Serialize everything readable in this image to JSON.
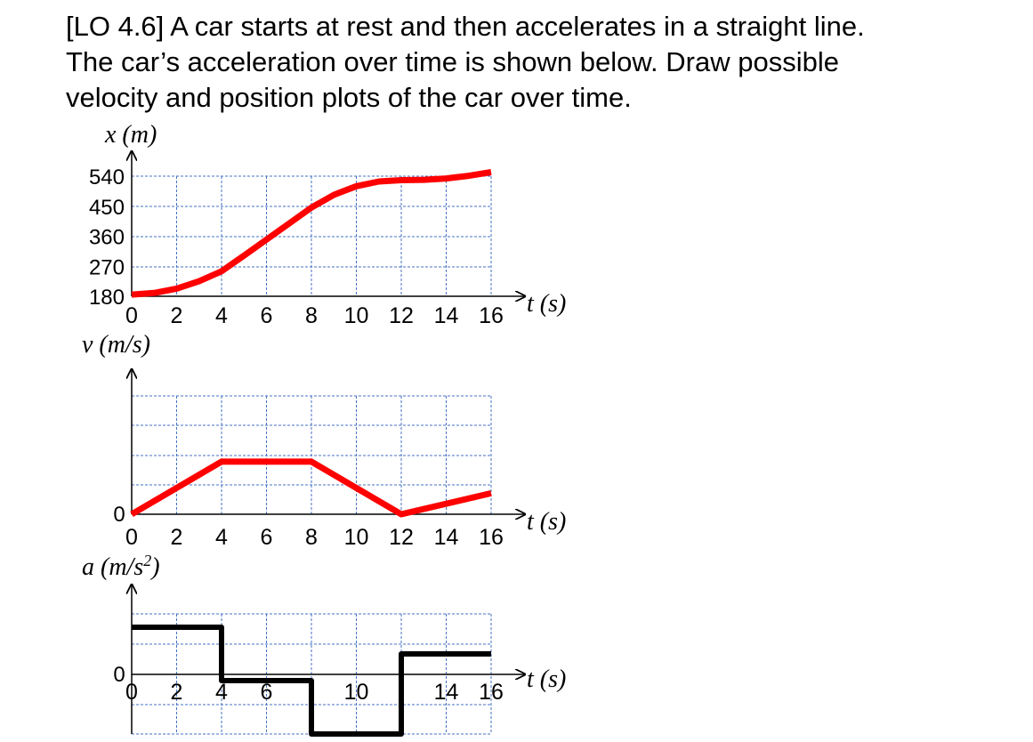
{
  "question": {
    "lines": [
      "[LO 4.6] A car starts at rest and then accelerates in a straight line.",
      "The car’s acceleration over time is shown below. Draw possible",
      "velocity and position plots of the car over time."
    ]
  },
  "colors": {
    "curve_answer": "#ff0000",
    "curve_given": "#000000",
    "grid": "#4472c4",
    "axis": "#000000"
  },
  "chart_data": [
    {
      "type": "line",
      "id": "position",
      "ylabel": "x (m)",
      "xlabel": "t (s)",
      "xlim": [
        0,
        16
      ],
      "ylim": [
        180,
        540
      ],
      "x_ticks": [
        "0",
        "2",
        "4",
        "6",
        "8",
        "10",
        "12",
        "14",
        "16"
      ],
      "y_ticks": [
        "180",
        "270",
        "360",
        "450",
        "540"
      ],
      "grid": true,
      "series": [
        {
          "x": [
            0,
            1,
            2,
            3,
            4,
            5,
            6,
            7,
            8,
            9,
            10,
            11,
            12,
            13,
            14,
            15,
            16
          ],
          "y": [
            185,
            190,
            203,
            225,
            255,
            302,
            350,
            398,
            446,
            484,
            510,
            524,
            528,
            529,
            533,
            541,
            552
          ]
        }
      ]
    },
    {
      "type": "line",
      "id": "velocity",
      "ylabel": "v (m/s)",
      "xlabel": "t (s)",
      "xlim": [
        0,
        16
      ],
      "ylim": [
        0,
        4.5
      ],
      "x_ticks": [
        "0",
        "2",
        "4",
        "6",
        "8",
        "10",
        "12",
        "14",
        "16"
      ],
      "y_ticks": [
        "0"
      ],
      "grid": true,
      "series": [
        {
          "x": [
            0,
            4,
            8,
            12,
            16
          ],
          "y": [
            0,
            2,
            2,
            0,
            0.8
          ]
        }
      ]
    },
    {
      "type": "line",
      "id": "acceleration",
      "ylabel": "a (m/s²)",
      "xlabel": "t (s)",
      "xlim": [
        0,
        16
      ],
      "ylim": [
        -2,
        2.5
      ],
      "x_ticks": [
        "0",
        "2",
        "4",
        "6",
        "10",
        "14",
        "16"
      ],
      "y_ticks": [
        "0"
      ],
      "grid": true,
      "series": [
        {
          "x": [
            0,
            4,
            4,
            8,
            8,
            12,
            12,
            16
          ],
          "y": [
            2,
            2,
            0,
            0,
            -2,
            -2,
            1,
            1
          ]
        }
      ]
    }
  ]
}
